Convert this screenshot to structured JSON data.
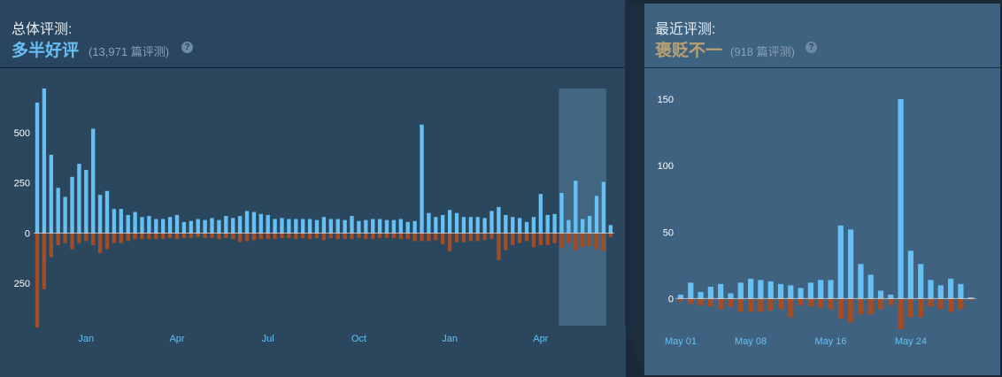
{
  "overall": {
    "title": "总体评测:",
    "summary": "多半好评",
    "summary_color": "#66c0f4",
    "count": "(13,971 篇评测)",
    "help": "?"
  },
  "recent": {
    "title": "最近评测:",
    "summary": "褒贬不一",
    "summary_color": "#b9a074",
    "count": "(918 篇评测)",
    "help": "?"
  },
  "colors": {
    "positive": "#66c0f4",
    "negative": "#a34c25",
    "zero_line": "#ffffff"
  },
  "chart_data": [
    {
      "type": "bar",
      "title": "",
      "y_tick_labels": [
        "500",
        "250",
        "0",
        "250"
      ],
      "y_ticks": [
        500,
        250,
        0,
        -250
      ],
      "ylim": [
        -470,
        720
      ],
      "x_tick_labels": [
        "Jan",
        "Apr",
        "Jul",
        "Oct",
        "Jan",
        "Apr"
      ],
      "x_tick_positions": [
        7,
        20,
        33,
        46,
        59,
        72
      ],
      "highlight_range": [
        75,
        80
      ],
      "series": [
        {
          "values": [
            650,
            720,
            390,
            225,
            180,
            280,
            345,
            315,
            520,
            190,
            210,
            120,
            120,
            90,
            105,
            80,
            85,
            70,
            70,
            80,
            90,
            55,
            60,
            70,
            65,
            75,
            65,
            85,
            75,
            85,
            110,
            105,
            95,
            90,
            70,
            75,
            70,
            70,
            70,
            70,
            65,
            80,
            70,
            70,
            65,
            85,
            60,
            65,
            70,
            70,
            65,
            65,
            70,
            55,
            60,
            540,
            100,
            80,
            90,
            115,
            100,
            80,
            80,
            80,
            75,
            110,
            130,
            90,
            80,
            75,
            55,
            80,
            195,
            90,
            95,
            200,
            65,
            260,
            70,
            85,
            185,
            255,
            40
          ]
        },
        {
          "values": [
            -470,
            -280,
            -120,
            -60,
            -50,
            -80,
            -50,
            -40,
            -60,
            -100,
            -80,
            -50,
            -50,
            -40,
            -30,
            -30,
            -30,
            -30,
            -30,
            -25,
            -30,
            -25,
            -25,
            -20,
            -25,
            -25,
            -30,
            -25,
            -30,
            -45,
            -40,
            -35,
            -30,
            -30,
            -30,
            -25,
            -25,
            -30,
            -25,
            -30,
            -25,
            -35,
            -25,
            -30,
            -30,
            -30,
            -25,
            -30,
            -30,
            -25,
            -25,
            -25,
            -30,
            -30,
            -40,
            -40,
            -40,
            -35,
            -55,
            -90,
            -45,
            -45,
            -40,
            -40,
            -35,
            -30,
            -135,
            -85,
            -60,
            -50,
            -40,
            -70,
            -60,
            -60,
            -50,
            -75,
            -50,
            -85,
            -70,
            -65,
            -80,
            -90,
            -20
          ]
        }
      ]
    },
    {
      "type": "bar",
      "title": "",
      "y_tick_labels": [
        "150",
        "100",
        "50",
        "0"
      ],
      "y_ticks": [
        150,
        100,
        50,
        0
      ],
      "ylim": [
        -23,
        158
      ],
      "x_tick_labels": [
        "May 01",
        "May 08",
        "May 16",
        "May 24"
      ],
      "x_tick_positions": [
        0,
        7,
        15,
        23
      ],
      "series": [
        {
          "values": [
            3,
            12,
            5,
            9,
            11,
            4,
            12,
            15,
            14,
            13,
            11,
            10,
            8,
            12,
            14,
            14,
            55,
            52,
            26,
            18,
            6,
            3,
            150,
            36,
            26,
            14,
            10,
            15,
            11,
            1
          ]
        },
        {
          "values": [
            -2,
            -4,
            -5,
            -6,
            -8,
            -6,
            -10,
            -10,
            -10,
            -9,
            -8,
            -14,
            -5,
            -6,
            -7,
            -8,
            -15,
            -18,
            -12,
            -12,
            -8,
            -5,
            -23,
            -14,
            -14,
            -6,
            -8,
            -10,
            -8,
            -1
          ]
        }
      ]
    }
  ]
}
